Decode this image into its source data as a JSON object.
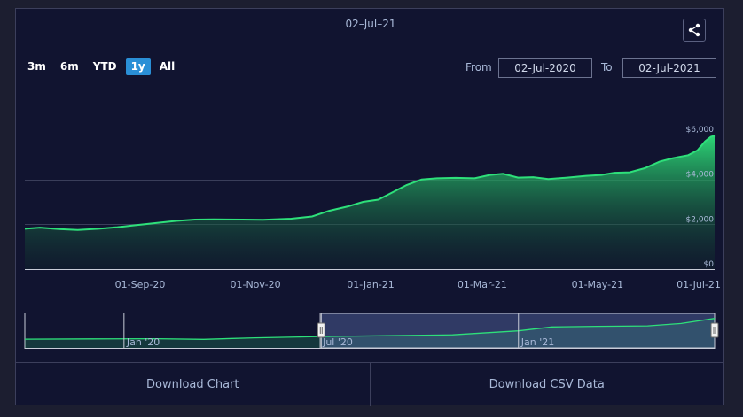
{
  "header": {
    "date": "02–Jul–21"
  },
  "share": {
    "icon": "share-icon"
  },
  "range_buttons": [
    {
      "label": "3m",
      "active": false
    },
    {
      "label": "6m",
      "active": false
    },
    {
      "label": "YTD",
      "active": false
    },
    {
      "label": "1y",
      "active": true
    },
    {
      "label": "All",
      "active": false
    }
  ],
  "date_range": {
    "from_label": "From",
    "from_value": "02-Jul-2020",
    "to_label": "To",
    "to_value": "02-Jul-2021"
  },
  "footer": {
    "download_chart": "Download Chart",
    "download_csv": "Download CSV Data"
  },
  "colors": {
    "background": "#111430",
    "line": "#2ee07a",
    "accent": "#2a8fd6"
  },
  "chart_data": {
    "type": "area",
    "title": "",
    "xlabel": "",
    "ylabel": "",
    "ylim": [
      0,
      6000
    ],
    "y_ticks": [
      {
        "value": 0,
        "label": "$0"
      },
      {
        "value": 2000,
        "label": "$2,000"
      },
      {
        "value": 4000,
        "label": "$4,000"
      },
      {
        "value": 6000,
        "label": "$6,000"
      }
    ],
    "x_ticks": [
      "01-Sep-20",
      "01-Nov-20",
      "01-Jan-21",
      "01-Mar-21",
      "01-May-21",
      "01-Jul-21"
    ],
    "x_range": [
      "2020-07-02",
      "2021-07-02"
    ],
    "series": [
      {
        "name": "",
        "points": [
          [
            "2020-07-02",
            1800
          ],
          [
            "2020-07-10",
            1850
          ],
          [
            "2020-07-20",
            1790
          ],
          [
            "2020-07-30",
            1750
          ],
          [
            "2020-08-10",
            1800
          ],
          [
            "2020-08-20",
            1870
          ],
          [
            "2020-08-30",
            1960
          ],
          [
            "2020-09-10",
            2060
          ],
          [
            "2020-09-20",
            2150
          ],
          [
            "2020-09-30",
            2210
          ],
          [
            "2020-10-10",
            2220
          ],
          [
            "2020-10-25",
            2210
          ],
          [
            "2020-11-05",
            2200
          ],
          [
            "2020-11-20",
            2250
          ],
          [
            "2020-12-01",
            2350
          ],
          [
            "2020-12-10",
            2600
          ],
          [
            "2020-12-20",
            2800
          ],
          [
            "2020-12-28",
            3000
          ],
          [
            "2021-01-05",
            3100
          ],
          [
            "2021-01-12",
            3400
          ],
          [
            "2021-01-20",
            3750
          ],
          [
            "2021-01-28",
            4000
          ],
          [
            "2021-02-05",
            4050
          ],
          [
            "2021-02-15",
            4070
          ],
          [
            "2021-02-25",
            4050
          ],
          [
            "2021-03-05",
            4200
          ],
          [
            "2021-03-12",
            4250
          ],
          [
            "2021-03-20",
            4080
          ],
          [
            "2021-03-28",
            4100
          ],
          [
            "2021-04-05",
            4020
          ],
          [
            "2021-04-15",
            4080
          ],
          [
            "2021-04-25",
            4160
          ],
          [
            "2021-05-03",
            4200
          ],
          [
            "2021-05-10",
            4300
          ],
          [
            "2021-05-18",
            4320
          ],
          [
            "2021-05-26",
            4500
          ],
          [
            "2021-06-03",
            4800
          ],
          [
            "2021-06-10",
            4950
          ],
          [
            "2021-06-18",
            5080
          ],
          [
            "2021-06-23",
            5300
          ],
          [
            "2021-06-27",
            5700
          ],
          [
            "2021-06-30",
            5900
          ],
          [
            "2021-07-02",
            5950
          ]
        ]
      }
    ]
  },
  "navigator": {
    "x_range": [
      "2019-10-01",
      "2021-07-02"
    ],
    "window": [
      "2020-07-02",
      "2021-07-02"
    ],
    "ticks": [
      "Jan '20",
      "Jul '20",
      "Jan '21"
    ],
    "tick_dates": [
      "2020-01-01",
      "2020-07-01",
      "2021-01-01"
    ],
    "series": [
      [
        "2019-10-01",
        1200
      ],
      [
        "2019-12-01",
        1250
      ],
      [
        "2020-02-01",
        1300
      ],
      [
        "2020-03-15",
        1150
      ],
      [
        "2020-05-01",
        1500
      ],
      [
        "2020-07-02",
        1800
      ],
      [
        "2020-09-01",
        2000
      ],
      [
        "2020-11-01",
        2200
      ],
      [
        "2021-01-01",
        3100
      ],
      [
        "2021-02-01",
        4000
      ],
      [
        "2021-03-15",
        4150
      ],
      [
        "2021-05-01",
        4250
      ],
      [
        "2021-06-01",
        4800
      ],
      [
        "2021-07-02",
        5950
      ]
    ]
  }
}
